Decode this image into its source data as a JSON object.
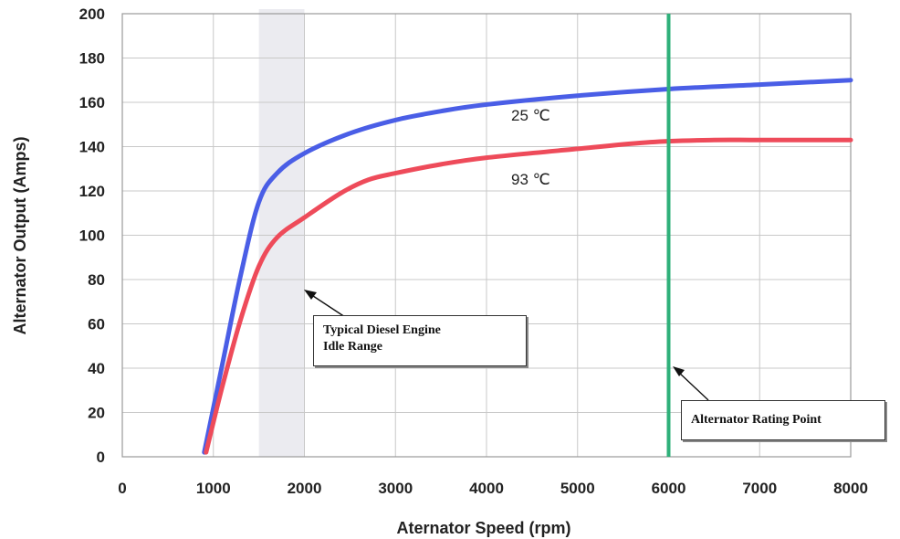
{
  "chart_data": {
    "type": "line",
    "xlabel": "Aternator Speed (rpm)",
    "ylabel": "Alternator Output (Amps)",
    "xlim": [
      0,
      8000
    ],
    "ylim": [
      0,
      200
    ],
    "x_ticks": [
      "0",
      "1000",
      "2000",
      "3000",
      "4000",
      "5000",
      "6000",
      "7000",
      "8000"
    ],
    "y_ticks": [
      "0",
      "20",
      "40",
      "60",
      "80",
      "100",
      "120",
      "140",
      "160",
      "180",
      "200"
    ],
    "grid": true,
    "series": [
      {
        "name": "25 ℃",
        "color": "#4a5ee6",
        "x": [
          900,
          1100,
          1300,
          1500,
          1700,
          2000,
          2500,
          3000,
          3500,
          4000,
          5000,
          6000,
          7000,
          8000
        ],
        "y": [
          2,
          42,
          82,
          115,
          128,
          137,
          146,
          152,
          156,
          159,
          163,
          166,
          168,
          170
        ]
      },
      {
        "name": "93 ℃",
        "color": "#ee4b5a",
        "x": [
          920,
          1100,
          1300,
          1500,
          1700,
          2000,
          2400,
          2700,
          3000,
          3500,
          4000,
          5000,
          5800,
          6500,
          7000,
          8000
        ],
        "y": [
          2,
          32,
          62,
          86,
          99,
          108,
          119,
          125,
          128,
          132,
          135,
          139,
          142,
          143,
          143,
          143
        ]
      }
    ],
    "shaded_region": {
      "x": [
        1500,
        2000
      ],
      "color": "#ebebf0",
      "label": "Typical Diesel Engine\nIdle Range"
    },
    "vertical_line": {
      "x": 6000,
      "color": "#2fb07a",
      "label": "Alternator Rating Point"
    }
  }
}
